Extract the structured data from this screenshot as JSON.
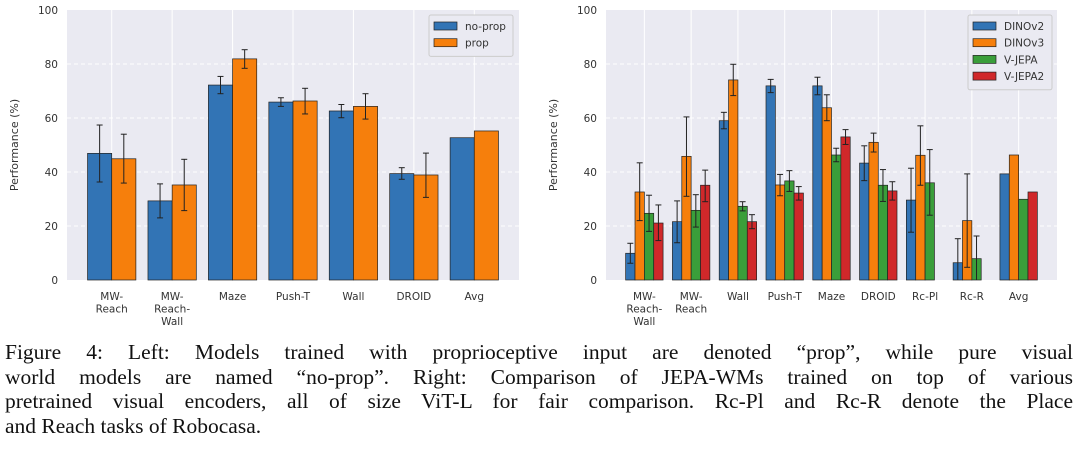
{
  "chart_data": [
    {
      "type": "bar",
      "title": "",
      "xlabel": "",
      "ylabel": "Performance (%)",
      "ylim": [
        0,
        100
      ],
      "yticks": [
        0,
        20,
        40,
        60,
        80,
        100
      ],
      "xlim": [
        -0.74,
        6.74
      ],
      "bar_width": 0.4,
      "grid": true,
      "legend_placement": "top-right",
      "categories": [
        [
          "MW-",
          "Reach"
        ],
        [
          "MW-",
          "Reach-",
          "Wall"
        ],
        [
          "Maze"
        ],
        [
          "Push-T"
        ],
        [
          "Wall"
        ],
        [
          "DROID"
        ],
        [
          "Avg"
        ]
      ],
      "series": [
        {
          "name": "no-prop",
          "color": "#3274b5",
          "values": [
            46.9,
            29.3,
            72.2,
            65.9,
            62.6,
            39.4,
            52.7
          ],
          "err_low": [
            36.3,
            23.0,
            69.0,
            64.3,
            60.1,
            37.3,
            null
          ],
          "err_high": [
            57.4,
            35.6,
            75.4,
            67.5,
            65.0,
            41.6,
            null
          ]
        },
        {
          "name": "prop",
          "color": "#f67f0c",
          "values": [
            44.9,
            35.2,
            81.9,
            66.3,
            64.3,
            38.9,
            55.2
          ],
          "err_low": [
            35.9,
            25.7,
            78.4,
            61.5,
            59.6,
            30.6,
            null
          ],
          "err_high": [
            54.0,
            44.7,
            85.3,
            71.0,
            69.0,
            47.0,
            null
          ]
        }
      ]
    },
    {
      "type": "bar",
      "title": "",
      "xlabel": "",
      "ylabel": "Performance (%)",
      "ylim": [
        0,
        100
      ],
      "yticks": [
        0,
        20,
        40,
        60,
        80,
        100
      ],
      "xlim": [
        -0.82,
        8.82
      ],
      "bar_width": 0.2,
      "grid": true,
      "legend_placement": "top-right",
      "categories": [
        [
          "MW-",
          "Reach-",
          "Wall"
        ],
        [
          "MW-",
          "Reach"
        ],
        [
          "Wall"
        ],
        [
          "Push-T"
        ],
        [
          "Maze"
        ],
        [
          "DROID"
        ],
        [
          "Rc-Pl"
        ],
        [
          "Rc-R"
        ],
        [
          "Avg"
        ]
      ],
      "series": [
        {
          "name": "DINOv2",
          "color": "#3274b5",
          "values": [
            9.9,
            21.6,
            59.0,
            71.9,
            71.9,
            43.3,
            29.6,
            6.4,
            39.3
          ],
          "err_low": [
            6.2,
            13.8,
            56.0,
            69.4,
            68.6,
            36.8,
            17.7,
            0,
            null
          ],
          "err_high": [
            13.6,
            29.3,
            62.1,
            74.3,
            75.1,
            49.7,
            41.4,
            15.3,
            null
          ]
        },
        {
          "name": "DINOv3",
          "color": "#f67f0c",
          "values": [
            32.6,
            45.8,
            74.1,
            35.2,
            63.8,
            51.0,
            46.2,
            22.0,
            46.3
          ],
          "err_low": [
            22.0,
            31.0,
            68.3,
            31.2,
            59.0,
            47.4,
            35.1,
            4.7,
            null
          ],
          "err_high": [
            43.4,
            60.4,
            79.9,
            39.1,
            68.6,
            54.4,
            57.1,
            39.3,
            null
          ]
        },
        {
          "name": "V-JEPA",
          "color": "#3a9e3a",
          "values": [
            24.7,
            25.8,
            27.3,
            36.7,
            46.3,
            35.1,
            36.0,
            7.9,
            29.9
          ],
          "err_low": [
            18.0,
            19.6,
            25.6,
            32.8,
            43.8,
            29.1,
            24.0,
            0,
            null
          ],
          "err_high": [
            31.4,
            31.6,
            29.0,
            40.5,
            48.8,
            40.9,
            48.3,
            16.3,
            null
          ]
        },
        {
          "name": "V-JEPA2",
          "color": "#d0282a",
          "values": [
            21.1,
            35.1,
            21.6,
            32.2,
            53.0,
            33.0,
            0,
            0,
            32.6
          ],
          "err_low": [
            14.6,
            29.0,
            19.0,
            29.6,
            50.2,
            29.6,
            null,
            null,
            null
          ],
          "err_high": [
            27.8,
            40.7,
            24.2,
            34.6,
            55.7,
            36.4,
            null,
            null,
            null
          ]
        }
      ]
    }
  ],
  "caption": [
    "Figure 4:  Left:  Models trained with proprioceptive input are denoted “prop”, while pure visual",
    "world models are named “no-prop”.  Right:  Comparison of JEPA-WMs trained on top of various",
    "pretrained visual encoders, all of size ViT-L for fair comparison. Rc-Pl and Rc-R denote the Place",
    "and Reach tasks of Robocasa."
  ]
}
